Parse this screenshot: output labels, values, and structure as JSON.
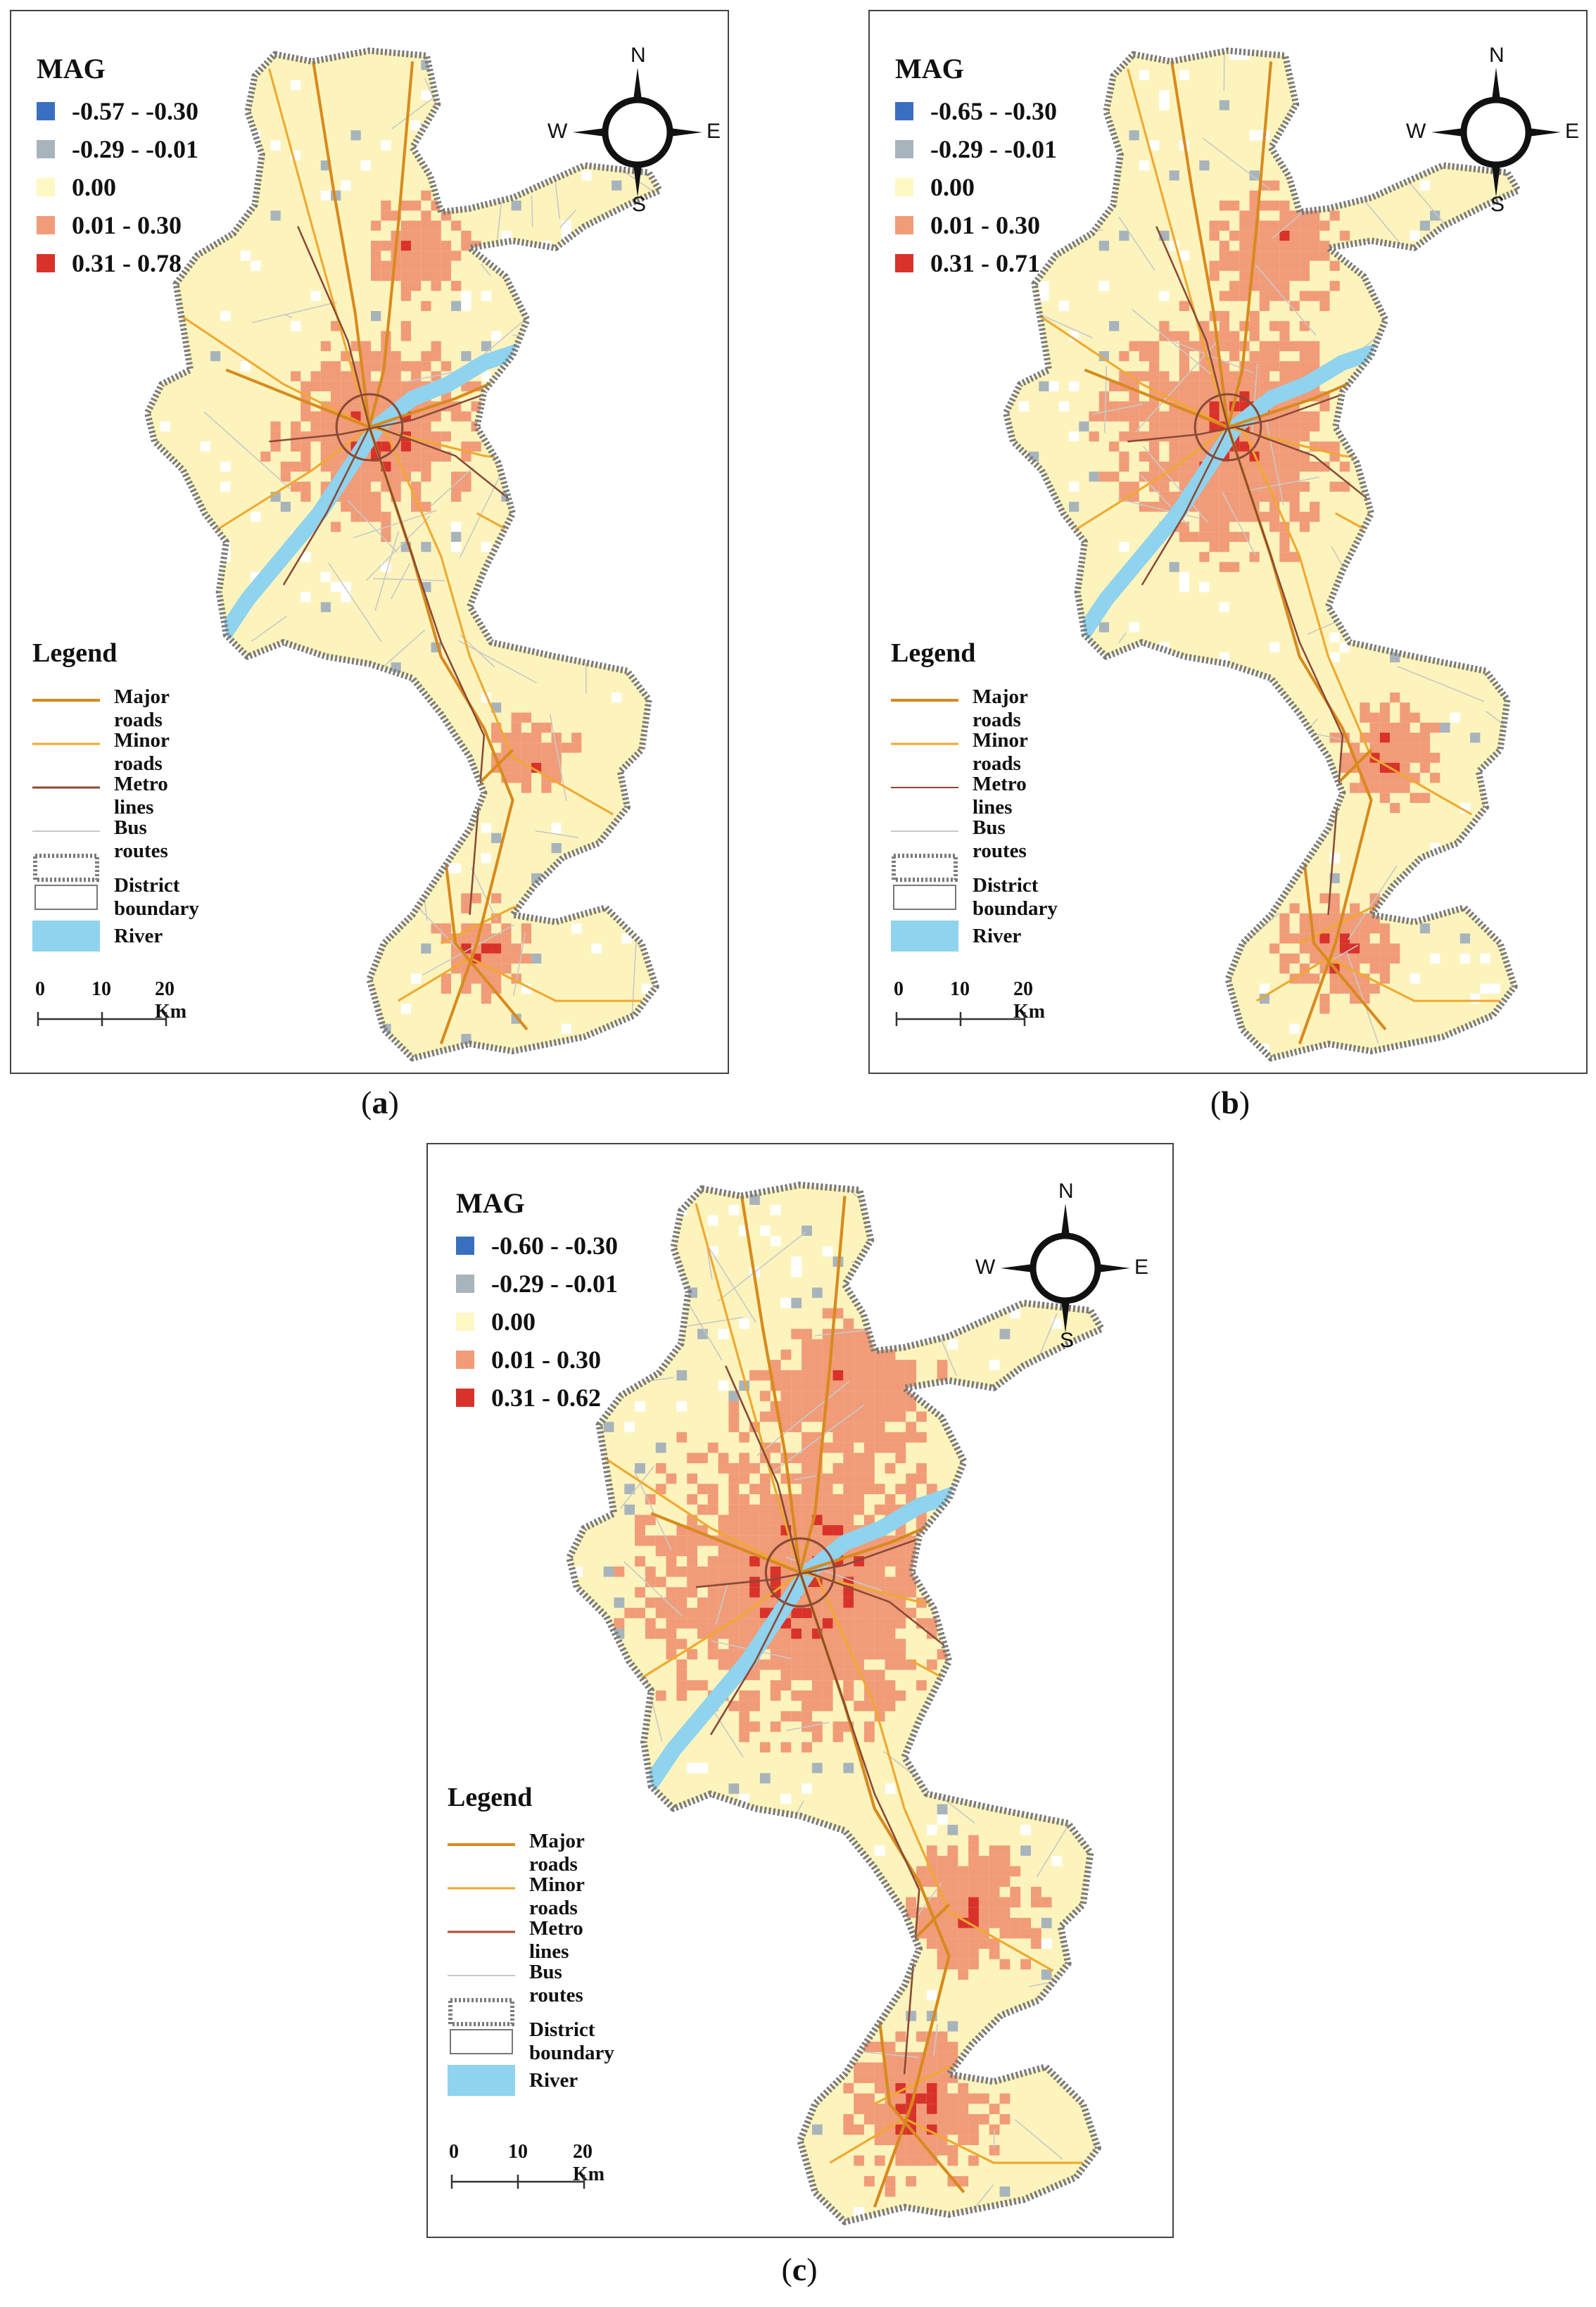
{
  "colors": {
    "mag_classes": [
      "#3a6fbf",
      "#a8b4bc",
      "#fdf8c4",
      "#f19b78",
      "#d8322a"
    ],
    "major_road": "#d88a1e",
    "minor_road": "#f0a830",
    "metro": "#8a4a38",
    "bus": "#c9c9c9",
    "boundary": "#7a7a7a",
    "river": "#8fd3ee",
    "land": "#fdf4bd"
  },
  "common": {
    "mag_title": "MAG",
    "legend_title": "Legend",
    "features": [
      "Major roads",
      "Minor roads",
      "Metro lines",
      "Bus routes",
      "District boundary",
      "River"
    ],
    "compass": {
      "n": "N",
      "s": "S",
      "e": "E",
      "w": "W"
    },
    "scale": {
      "t0": "0",
      "t1": "10",
      "t2": "20 Km"
    }
  },
  "panels": [
    {
      "mag_ranges": [
        "-0.57 - -0.30",
        "-0.29 - -0.01",
        "0.00",
        "0.01 - 0.30",
        "0.31 - 0.78"
      ],
      "caption_open": "(",
      "caption_letter": "a",
      "caption_close": ")"
    },
    {
      "mag_ranges": [
        "-0.65 - -0.30",
        "-0.29 - -0.01",
        "0.00",
        "0.01 - 0.30",
        "0.31 - 0.71"
      ],
      "caption_open": "(",
      "caption_letter": "b",
      "caption_close": ")"
    },
    {
      "mag_ranges": [
        "-0.60 - -0.30",
        "-0.29 - -0.01",
        "0.00",
        "0.01 - 0.30",
        "0.31 - 0.62"
      ],
      "caption_open": "(",
      "caption_letter": "c",
      "caption_close": ")"
    }
  ]
}
